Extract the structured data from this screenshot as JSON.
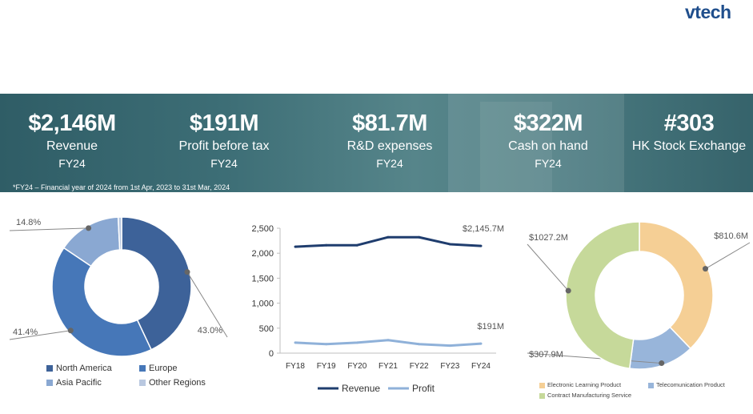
{
  "brand": {
    "logo_text": "vtech",
    "color": "#1f4e8c"
  },
  "stats": [
    {
      "value": "$2,146M",
      "label": "Revenue",
      "period": "FY24"
    },
    {
      "value": "$191M",
      "label": "Profit before tax",
      "period": "FY24"
    },
    {
      "value": "$81.7M",
      "label": "R&D expenses",
      "period": "FY24"
    },
    {
      "value": "$322M",
      "label": "Cash on hand",
      "period": "FY24"
    },
    {
      "value": "#303",
      "label": "HK Stock Exchange",
      "period": ""
    }
  ],
  "footnote": "*FY24 – Financial year of 2024 from 1st Apr, 2023 to 31st Mar, 2024",
  "chart_data": [
    {
      "type": "pie",
      "donut": true,
      "slices": [
        {
          "label": "North America",
          "value": 43.0,
          "value_label": "43.0%",
          "color": "#3d6299"
        },
        {
          "label": "Europe",
          "value": 41.4,
          "value_label": "41.4%",
          "color": "#4677b8"
        },
        {
          "label": "Asia Pacific",
          "value": 14.8,
          "value_label": "14.8%",
          "color": "#8aa8d2"
        },
        {
          "label": "Other Regions",
          "value": 0.8,
          "value_label": "",
          "color": "#b9c8e0"
        }
      ],
      "legend_position": "bottom"
    },
    {
      "type": "line",
      "categories": [
        "FY18",
        "FY19",
        "FY20",
        "FY21",
        "FY22",
        "FY23",
        "FY24"
      ],
      "series": [
        {
          "name": "Revenue",
          "values": [
            2130,
            2160,
            2160,
            2320,
            2320,
            2180,
            2145.7
          ],
          "color": "#1f3d6e",
          "end_label": "$2,145.7M"
        },
        {
          "name": "Profit",
          "values": [
            210,
            180,
            210,
            260,
            180,
            150,
            191
          ],
          "color": "#8fb1d9",
          "end_label": "$191M"
        }
      ],
      "ylim": [
        0,
        2500
      ],
      "yticks": [
        "0",
        "500",
        "1,000",
        "1,500",
        "2,000",
        "2,500"
      ],
      "grid": false,
      "legend_position": "bottom"
    },
    {
      "type": "pie",
      "donut": true,
      "slices": [
        {
          "label": "Electronic Learning Product",
          "value": 810.6,
          "value_label": "$810.6M",
          "color": "#f5cf95"
        },
        {
          "label": "Telecomunication Product",
          "value": 307.9,
          "value_label": "$307.9M",
          "color": "#98b5da"
        },
        {
          "label": "Contract Manufacturing Service",
          "value": 1027.2,
          "value_label": "$1027.2M",
          "color": "#c6d99a"
        }
      ],
      "legend_position": "bottom"
    }
  ]
}
